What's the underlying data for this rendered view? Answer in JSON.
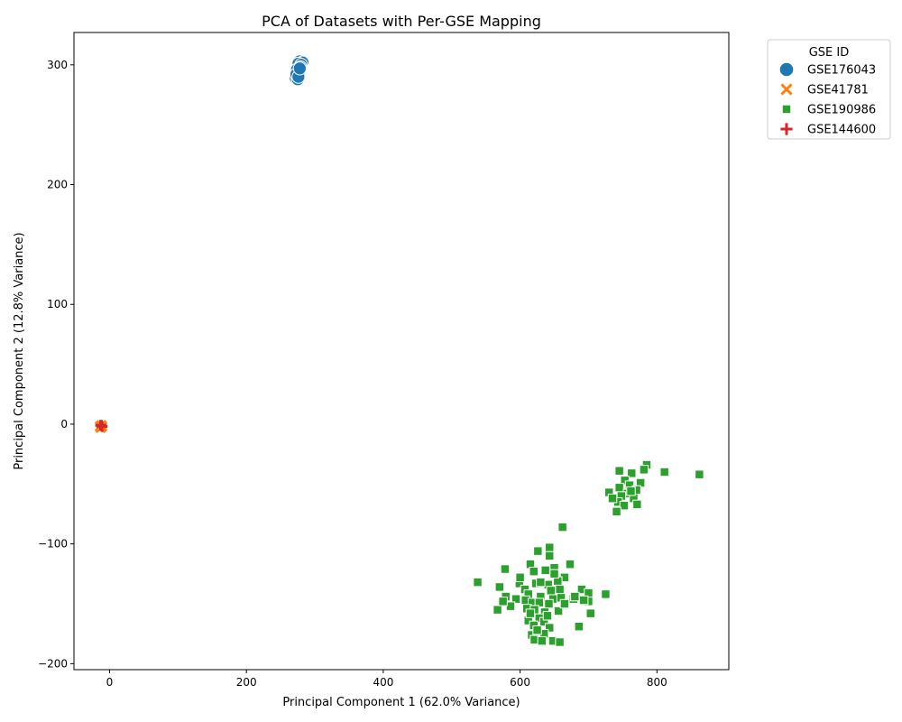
{
  "chart_data": {
    "type": "scatter",
    "title": "PCA of Datasets with Per-GSE Mapping",
    "xlabel": "Principal Component 1 (62.0% Variance)",
    "ylabel": "Principal Component 2 (12.8% Variance)",
    "xlim": [
      -52,
      905
    ],
    "ylim": [
      -205,
      327
    ],
    "xticks": [
      0,
      200,
      400,
      600,
      800
    ],
    "yticks": [
      -200,
      -100,
      0,
      100,
      200,
      300
    ],
    "grid": false,
    "legend": {
      "title": "GSE ID",
      "placement": "outside-top-right"
    },
    "series": [
      {
        "name": "GSE176043",
        "marker": "circle",
        "color": "#1f77b4",
        "points": [
          [
            278,
            303
          ],
          [
            282,
            302
          ],
          [
            276,
            301
          ],
          [
            280,
            300
          ],
          [
            274,
            296
          ],
          [
            277,
            294
          ],
          [
            272,
            289
          ],
          [
            275,
            288
          ],
          [
            279,
            298
          ],
          [
            273,
            292
          ],
          [
            276,
            290
          ],
          [
            278,
            297
          ]
        ]
      },
      {
        "name": "GSE41781",
        "marker": "x",
        "color": "#ff7f0e",
        "points": [
          [
            -14,
            -2
          ],
          [
            -12,
            -1
          ],
          [
            -13,
            -3
          ],
          [
            -11,
            -2
          ]
        ]
      },
      {
        "name": "GSE190986",
        "marker": "square",
        "color": "#2ca02c",
        "points": [
          [
            745,
            -39
          ],
          [
            763,
            -41
          ],
          [
            785,
            -34
          ],
          [
            781,
            -38
          ],
          [
            811,
            -40
          ],
          [
            862,
            -42
          ],
          [
            753,
            -47
          ],
          [
            776,
            -49
          ],
          [
            760,
            -51
          ],
          [
            745,
            -53
          ],
          [
            770,
            -55
          ],
          [
            730,
            -57
          ],
          [
            757,
            -58
          ],
          [
            748,
            -60
          ],
          [
            766,
            -62
          ],
          [
            743,
            -65
          ],
          [
            752,
            -68
          ],
          [
            771,
            -67
          ],
          [
            741,
            -73
          ],
          [
            762,
            -56
          ],
          [
            735,
            -62
          ],
          [
            662,
            -86
          ],
          [
            643,
            -103
          ],
          [
            626,
            -106
          ],
          [
            643,
            -110
          ],
          [
            615,
            -117
          ],
          [
            673,
            -117
          ],
          [
            650,
            -120
          ],
          [
            578,
            -121
          ],
          [
            620,
            -123
          ],
          [
            637,
            -122
          ],
          [
            665,
            -128
          ],
          [
            655,
            -131
          ],
          [
            623,
            -133
          ],
          [
            641,
            -134
          ],
          [
            538,
            -132
          ],
          [
            570,
            -136
          ],
          [
            599,
            -133
          ],
          [
            607,
            -138
          ],
          [
            630,
            -132
          ],
          [
            658,
            -138
          ],
          [
            690,
            -138
          ],
          [
            700,
            -141
          ],
          [
            725,
            -142
          ],
          [
            645,
            -139
          ],
          [
            612,
            -142
          ],
          [
            630,
            -144
          ],
          [
            678,
            -146
          ],
          [
            700,
            -148
          ],
          [
            693,
            -147
          ],
          [
            579,
            -144
          ],
          [
            594,
            -146
          ],
          [
            608,
            -147
          ],
          [
            618,
            -149
          ],
          [
            628,
            -149
          ],
          [
            648,
            -146
          ],
          [
            660,
            -145
          ],
          [
            680,
            -144
          ],
          [
            642,
            -150
          ],
          [
            586,
            -152
          ],
          [
            610,
            -154
          ],
          [
            621,
            -155
          ],
          [
            567,
            -155
          ],
          [
            636,
            -157
          ],
          [
            656,
            -156
          ],
          [
            703,
            -158
          ],
          [
            575,
            -148
          ],
          [
            628,
            -162
          ],
          [
            612,
            -164
          ],
          [
            635,
            -165
          ],
          [
            620,
            -168
          ],
          [
            643,
            -170
          ],
          [
            686,
            -169
          ],
          [
            617,
            -176
          ],
          [
            635,
            -175
          ],
          [
            621,
            -180
          ],
          [
            632,
            -181
          ],
          [
            648,
            -181
          ],
          [
            658,
            -182
          ],
          [
            625,
            -172
          ],
          [
            640,
            -160
          ],
          [
            650,
            -125
          ],
          [
            600,
            -128
          ],
          [
            665,
            -150
          ],
          [
            615,
            -158
          ]
        ]
      },
      {
        "name": "GSE144600",
        "marker": "plus",
        "color": "#d62728",
        "points": [
          [
            -12,
            -1
          ],
          [
            -11,
            -2
          ],
          [
            -13,
            -1
          ]
        ]
      }
    ]
  }
}
